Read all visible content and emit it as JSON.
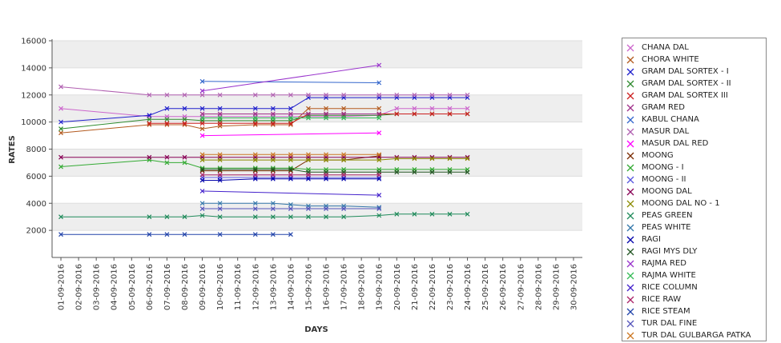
{
  "chart_data": {
    "type": "line",
    "title": "",
    "xlabel": "DAYS",
    "ylabel": "RATES",
    "ylim": [
      0,
      16000
    ],
    "yticks": [
      2000,
      4000,
      6000,
      8000,
      10000,
      12000,
      14000,
      16000
    ],
    "grid": "alternating horizontal bands",
    "legend_position": "right",
    "categories": [
      "01-09-2016",
      "02-09-2016",
      "03-09-2016",
      "04-09-2016",
      "05-09-2016",
      "06-09-2016",
      "07-09-2016",
      "08-09-2016",
      "09-09-2016",
      "10-09-2016",
      "11-09-2016",
      "12-09-2016",
      "13-09-2016",
      "14-09-2016",
      "15-09-2016",
      "16-09-2016",
      "17-09-2016",
      "18-09-2016",
      "19-09-2016",
      "20-09-2016",
      "21-09-2016",
      "22-09-2016",
      "23-09-2016",
      "24-09-2016",
      "25-09-2016",
      "26-09-2016",
      "27-09-2016",
      "28-09-2016",
      "29-09-2016",
      "30-09-2016"
    ],
    "series": [
      {
        "name": "CHANA DAL",
        "color": "#cc66cc",
        "values": [
          11000,
          null,
          null,
          null,
          null,
          10400,
          10400,
          10400,
          10400,
          10400,
          null,
          10400,
          10400,
          10400,
          10400,
          10400,
          10400,
          null,
          10500,
          11000,
          11000,
          11000,
          11000,
          11000,
          null,
          null,
          null,
          null,
          null,
          null
        ]
      },
      {
        "name": "CHORA WHITE",
        "color": "#b35a1f",
        "values": [
          9200,
          null,
          null,
          null,
          null,
          9800,
          9800,
          9800,
          9500,
          9700,
          null,
          9800,
          9800,
          9800,
          11000,
          11000,
          11000,
          null,
          11000,
          null,
          null,
          null,
          null,
          null,
          null,
          null,
          null,
          null,
          null,
          null
        ]
      },
      {
        "name": "GRAM DAL SORTEX  - I",
        "color": "#1f1fcc",
        "values": [
          10000,
          null,
          null,
          null,
          null,
          10500,
          11000,
          11000,
          11000,
          11000,
          null,
          11000,
          11000,
          11000,
          11800,
          11800,
          11800,
          null,
          11800,
          11800,
          11800,
          11800,
          11800,
          11800,
          null,
          null,
          null,
          null,
          null,
          null
        ]
      },
      {
        "name": "GRAM DAL SORTEX - II",
        "color": "#2e8b2e",
        "values": [
          9500,
          null,
          null,
          null,
          null,
          10200,
          10200,
          10200,
          10100,
          10100,
          null,
          10100,
          10100,
          10100,
          10500,
          10500,
          10500,
          null,
          10500,
          10600,
          10600,
          10600,
          10600,
          10600,
          null,
          null,
          null,
          null,
          null,
          null
        ]
      },
      {
        "name": "GRAM DAL SORTEX III",
        "color": "#cc1f1f",
        "values": [
          null,
          null,
          null,
          null,
          null,
          9900,
          9900,
          9900,
          9900,
          9900,
          null,
          9900,
          9900,
          9900,
          10600,
          10600,
          10600,
          null,
          10600,
          10600,
          10600,
          10600,
          10600,
          10600,
          null,
          null,
          null,
          null,
          null,
          null
        ]
      },
      {
        "name": "GRAM RED",
        "color": "#a0308a",
        "values": [
          null,
          null,
          null,
          null,
          null,
          null,
          null,
          null,
          10600,
          10600,
          null,
          10600,
          10600,
          10600,
          10600,
          10600,
          10600,
          null,
          10600,
          null,
          null,
          null,
          null,
          null,
          null,
          null,
          null,
          null,
          null,
          null
        ]
      },
      {
        "name": "KABUL CHANA",
        "color": "#3366cc",
        "values": [
          null,
          null,
          null,
          null,
          null,
          null,
          null,
          null,
          13000,
          null,
          null,
          null,
          null,
          null,
          null,
          null,
          null,
          null,
          12900,
          null,
          null,
          null,
          null,
          null,
          null,
          null,
          null,
          null,
          null,
          null
        ]
      },
      {
        "name": "MASUR DAL",
        "color": "#b05fb0",
        "values": [
          12600,
          null,
          null,
          null,
          null,
          12000,
          12000,
          12000,
          12000,
          12000,
          null,
          12000,
          12000,
          12000,
          12000,
          12000,
          12000,
          null,
          12000,
          12000,
          12000,
          12000,
          12000,
          12000,
          null,
          null,
          null,
          null,
          null,
          null
        ]
      },
      {
        "name": "MASUR DAL RED",
        "color": "#ff00ff",
        "values": [
          null,
          null,
          null,
          null,
          null,
          null,
          null,
          null,
          9000,
          null,
          null,
          null,
          null,
          null,
          null,
          null,
          null,
          null,
          9200,
          null,
          null,
          null,
          null,
          null,
          null,
          null,
          null,
          null,
          null,
          null
        ]
      },
      {
        "name": "MOONG",
        "color": "#7a2a00",
        "values": [
          null,
          null,
          null,
          null,
          null,
          null,
          null,
          null,
          6400,
          6400,
          null,
          6400,
          6400,
          6400,
          7200,
          7200,
          7200,
          null,
          7500,
          null,
          null,
          null,
          null,
          null,
          null,
          null,
          null,
          null,
          null,
          null
        ]
      },
      {
        "name": "MOONG - I",
        "color": "#33aa33",
        "values": [
          6700,
          null,
          null,
          null,
          null,
          7200,
          7000,
          7000,
          6600,
          6600,
          null,
          6600,
          6600,
          6600,
          6500,
          6500,
          6500,
          null,
          6500,
          6500,
          6500,
          6500,
          6500,
          6500,
          null,
          null,
          null,
          null,
          null,
          null
        ]
      },
      {
        "name": "MOONG - II",
        "color": "#5555dd",
        "values": [
          null,
          null,
          null,
          null,
          null,
          null,
          null,
          null,
          5900,
          5900,
          null,
          5900,
          5900,
          5900,
          5900,
          5900,
          5900,
          null,
          5900,
          null,
          null,
          null,
          null,
          null,
          null,
          null,
          null,
          null,
          null,
          null
        ]
      },
      {
        "name": "MOONG DAL",
        "color": "#880055",
        "values": [
          7400,
          null,
          null,
          null,
          null,
          7400,
          7400,
          7400,
          7400,
          7400,
          null,
          7400,
          7400,
          7400,
          7400,
          7400,
          7400,
          null,
          7400,
          7400,
          7400,
          7400,
          7400,
          7400,
          null,
          null,
          null,
          null,
          null,
          null
        ]
      },
      {
        "name": "MOONG DAL NO - 1",
        "color": "#8b8b00",
        "values": [
          null,
          null,
          null,
          null,
          null,
          null,
          null,
          null,
          7200,
          7200,
          null,
          7200,
          7200,
          7200,
          7200,
          7200,
          7200,
          null,
          7200,
          7300,
          7300,
          7300,
          7300,
          7300,
          null,
          null,
          null,
          null,
          null,
          null
        ]
      },
      {
        "name": "PEAS GREEN",
        "color": "#1f8a5a",
        "values": [
          3000,
          null,
          null,
          null,
          null,
          3000,
          3000,
          3000,
          3100,
          3000,
          null,
          3000,
          3000,
          3000,
          3000,
          3000,
          3000,
          null,
          3100,
          3200,
          3200,
          3200,
          3200,
          3200,
          null,
          null,
          null,
          null,
          null,
          null
        ]
      },
      {
        "name": "PEAS WHITE",
        "color": "#3377aa",
        "values": [
          null,
          null,
          null,
          null,
          null,
          null,
          null,
          null,
          4000,
          4000,
          null,
          4000,
          4000,
          3900,
          3800,
          3800,
          3800,
          null,
          3700,
          null,
          null,
          null,
          null,
          null,
          null,
          null,
          null,
          null,
          null,
          null
        ]
      },
      {
        "name": "RAGI",
        "color": "#0000aa",
        "values": [
          null,
          null,
          null,
          null,
          null,
          null,
          null,
          null,
          5700,
          5700,
          null,
          5800,
          5800,
          5800,
          5800,
          5800,
          5800,
          null,
          5800,
          null,
          null,
          null,
          null,
          null,
          null,
          null,
          null,
          null,
          null,
          null
        ]
      },
      {
        "name": "RAGI MYS DLY",
        "color": "#225522",
        "values": [
          null,
          null,
          null,
          null,
          null,
          null,
          null,
          null,
          6500,
          6500,
          null,
          6500,
          6500,
          6500,
          6300,
          6300,
          6300,
          null,
          6300,
          6300,
          6300,
          6300,
          6300,
          6300,
          null,
          null,
          null,
          null,
          null,
          null
        ]
      },
      {
        "name": "RAJMA RED",
        "color": "#9933cc",
        "values": [
          null,
          null,
          null,
          null,
          null,
          null,
          null,
          null,
          12300,
          null,
          null,
          null,
          null,
          null,
          null,
          null,
          null,
          null,
          14200,
          null,
          null,
          null,
          null,
          null,
          null,
          null,
          null,
          null,
          null,
          null
        ]
      },
      {
        "name": "RAJMA WHITE",
        "color": "#33bb55",
        "values": [
          null,
          null,
          null,
          null,
          null,
          null,
          null,
          null,
          10300,
          10300,
          null,
          10300,
          10300,
          10300,
          10300,
          10300,
          10300,
          null,
          10300,
          null,
          null,
          null,
          null,
          null,
          null,
          null,
          null,
          null,
          null,
          null
        ]
      },
      {
        "name": "RICE COLUMN",
        "color": "#4422cc",
        "values": [
          null,
          null,
          null,
          null,
          null,
          null,
          null,
          null,
          4900,
          null,
          null,
          null,
          null,
          null,
          null,
          null,
          null,
          null,
          4600,
          null,
          null,
          null,
          null,
          null,
          null,
          null,
          null,
          null,
          null,
          null
        ]
      },
      {
        "name": "RICE RAW",
        "color": "#aa2266",
        "values": [
          null,
          null,
          null,
          null,
          null,
          null,
          null,
          null,
          6100,
          6100,
          null,
          6100,
          6100,
          6100,
          6100,
          6100,
          6100,
          null,
          6100,
          null,
          null,
          null,
          null,
          null,
          null,
          null,
          null,
          null,
          null,
          null
        ]
      },
      {
        "name": "RICE STEAM",
        "color": "#2244aa",
        "values": [
          1700,
          null,
          null,
          null,
          null,
          1700,
          1700,
          1700,
          null,
          1700,
          null,
          1700,
          1700,
          1700,
          null,
          null,
          null,
          null,
          null,
          null,
          null,
          null,
          null,
          null,
          null,
          null,
          null,
          null,
          null,
          null
        ]
      },
      {
        "name": "TUR DAL FINE",
        "color": "#5555bb",
        "values": [
          null,
          null,
          null,
          null,
          null,
          null,
          null,
          null,
          3600,
          3600,
          null,
          3600,
          3600,
          3600,
          3600,
          3600,
          3600,
          null,
          3600,
          null,
          null,
          null,
          null,
          null,
          null,
          null,
          null,
          null,
          null,
          null
        ]
      },
      {
        "name": "TUR DAL GULBARGA PATKA",
        "color": "#cc7722",
        "values": [
          null,
          null,
          null,
          null,
          null,
          null,
          null,
          null,
          7600,
          7600,
          null,
          7600,
          7600,
          7600,
          7600,
          7600,
          7600,
          null,
          7600,
          null,
          null,
          null,
          null,
          null,
          null,
          null,
          null,
          null,
          null,
          null
        ]
      }
    ]
  }
}
